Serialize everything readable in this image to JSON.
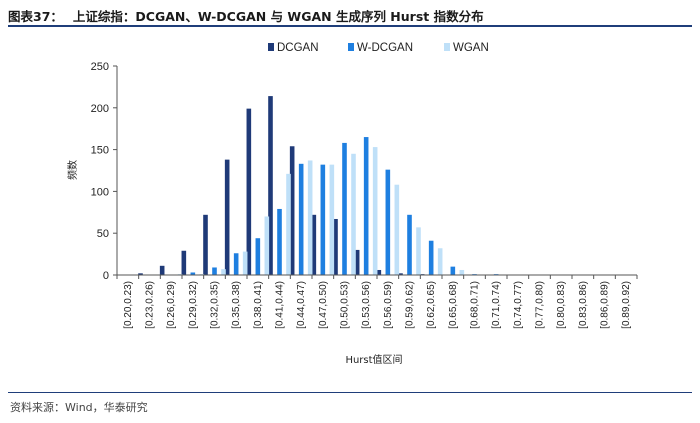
{
  "caption": {
    "number": "图表37：",
    "title": "上证综指：DCGAN、W-DCGAN 与 WGAN 生成序列 Hurst 指数分布"
  },
  "source": "资料来源：Wind，华泰研究",
  "chart_data": {
    "type": "bar",
    "xlabel": "Hurst值区间",
    "ylabel": "频数",
    "ylim": [
      0,
      250
    ],
    "yticks": [
      0,
      50,
      100,
      150,
      200,
      250
    ],
    "grid": false,
    "legend_position": "top",
    "categories": [
      "[0.20,0.23)",
      "[0.23,0.26)",
      "[0.26,0.29)",
      "[0.29,0.32)",
      "[0.32,0.35)",
      "[0.35,0.38)",
      "[0.38,0.41)",
      "[0.41,0.44)",
      "[0.44,0.47)",
      "[0.47,0.50)",
      "[0.50,0.53)",
      "[0.53,0.56)",
      "[0.56,0.59)",
      "[0.59,0.62)",
      "[0.62,0.65)",
      "[0.65,0.68)",
      "[0.68,0.71)",
      "[0.71,0.74)",
      "[0.74,0.77)",
      "[0.77,0.80)",
      "[0.80,0.83)",
      "[0.83,0.86)",
      "[0.86,0.89)",
      "[0.89,0.92)"
    ],
    "series": [
      {
        "name": "DCGAN",
        "color": "#1f3a78",
        "values": [
          0,
          2,
          11,
          29,
          72,
          138,
          199,
          214,
          154,
          72,
          67,
          30,
          6,
          2,
          1,
          0,
          0,
          0,
          0,
          0,
          0,
          0,
          0,
          0
        ]
      },
      {
        "name": "W-DCGAN",
        "color": "#1e7fe0",
        "values": [
          0,
          0,
          0,
          3,
          9,
          26,
          44,
          79,
          133,
          132,
          158,
          165,
          126,
          72,
          41,
          10,
          1,
          1,
          0,
          0,
          0,
          0,
          0,
          0
        ]
      },
      {
        "name": "WGAN",
        "color": "#bfe0f8",
        "values": [
          0,
          0,
          1,
          1,
          7,
          28,
          70,
          121,
          137,
          132,
          145,
          153,
          108,
          57,
          32,
          6,
          0,
          0,
          0,
          0,
          0,
          0,
          0,
          0
        ]
      }
    ]
  }
}
